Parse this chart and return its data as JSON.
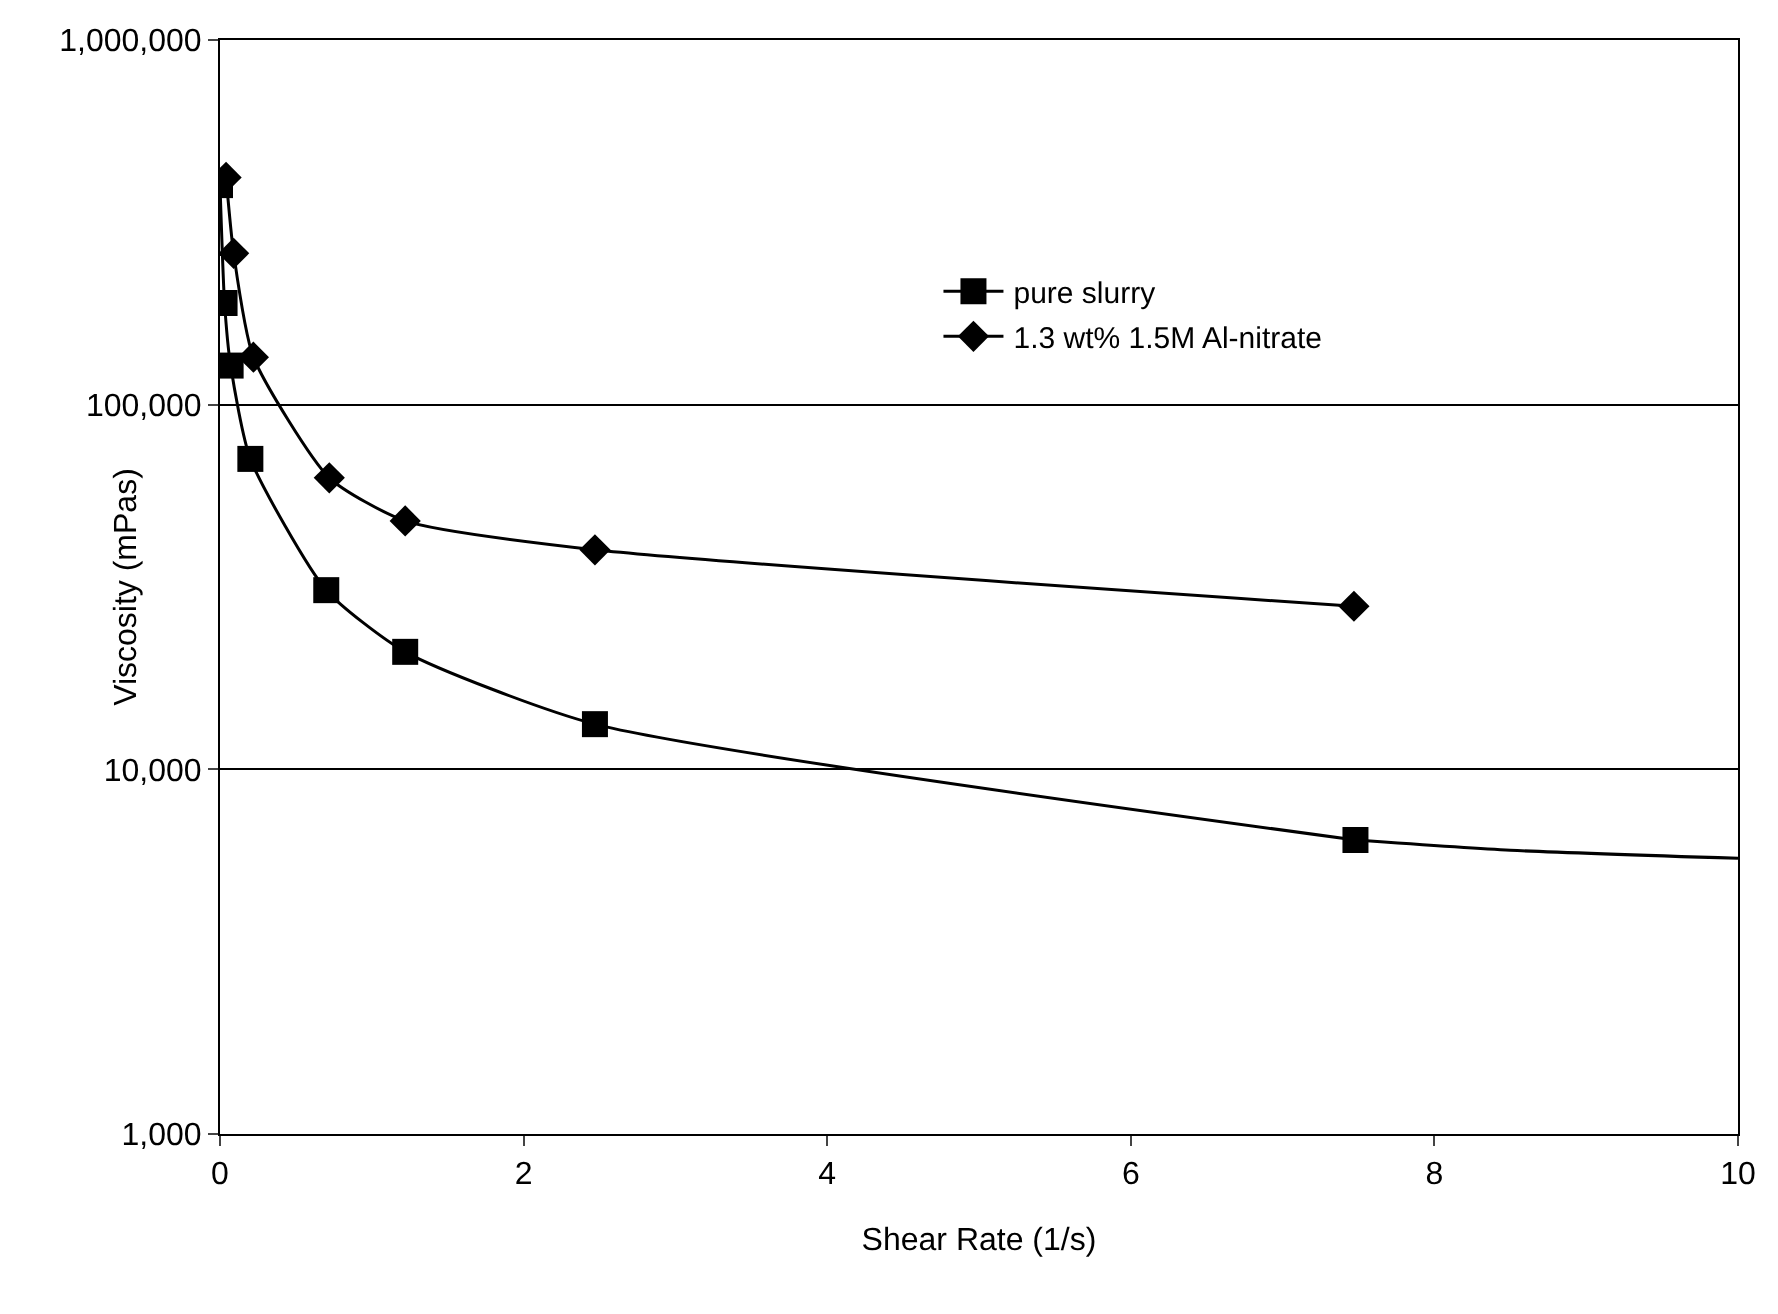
{
  "chart_data": {
    "type": "line",
    "xlabel": "Shear Rate (1/s)",
    "ylabel": "Viscosity (mPas)",
    "log": "y",
    "grid": "y",
    "legend": "top right",
    "xlim": [
      0,
      10
    ],
    "xticks": [
      0,
      2,
      4,
      6,
      8,
      10
    ],
    "ylim": [
      1000,
      1000000
    ],
    "yticks": [
      {
        "value": 1000,
        "label": "1,000"
      },
      {
        "value": 10000,
        "label": "10,000"
      },
      {
        "value": 100000,
        "label": "100,000"
      },
      {
        "value": 1000000,
        "label": "1,000,000"
      }
    ],
    "series": [
      {
        "name": "pure slurry",
        "color": "#000000",
        "marker": "square",
        "x": [
          0,
          0.03,
          0.07,
          0.2,
          0.7,
          1.22,
          2.47,
          7.48
        ],
        "values": [
          400000,
          190000,
          128000,
          71000,
          31000,
          21000,
          13300,
          6400
        ]
      },
      {
        "name": "1.3 wt% 1.5M Al-nitrate",
        "color": "#000000",
        "marker": "diamond",
        "x": [
          0.04,
          0.09,
          0.22,
          0.72,
          1.22,
          2.47,
          7.47
        ],
        "values": [
          420000,
          260000,
          135000,
          63000,
          48000,
          40000,
          28000
        ]
      },
      {
        "type": "line",
        "color": "#000000",
        "marker": "none",
        "x": [
          7.48,
          8.5,
          10
        ],
        "values": [
          6400,
          6000,
          5700
        ]
      }
    ]
  }
}
